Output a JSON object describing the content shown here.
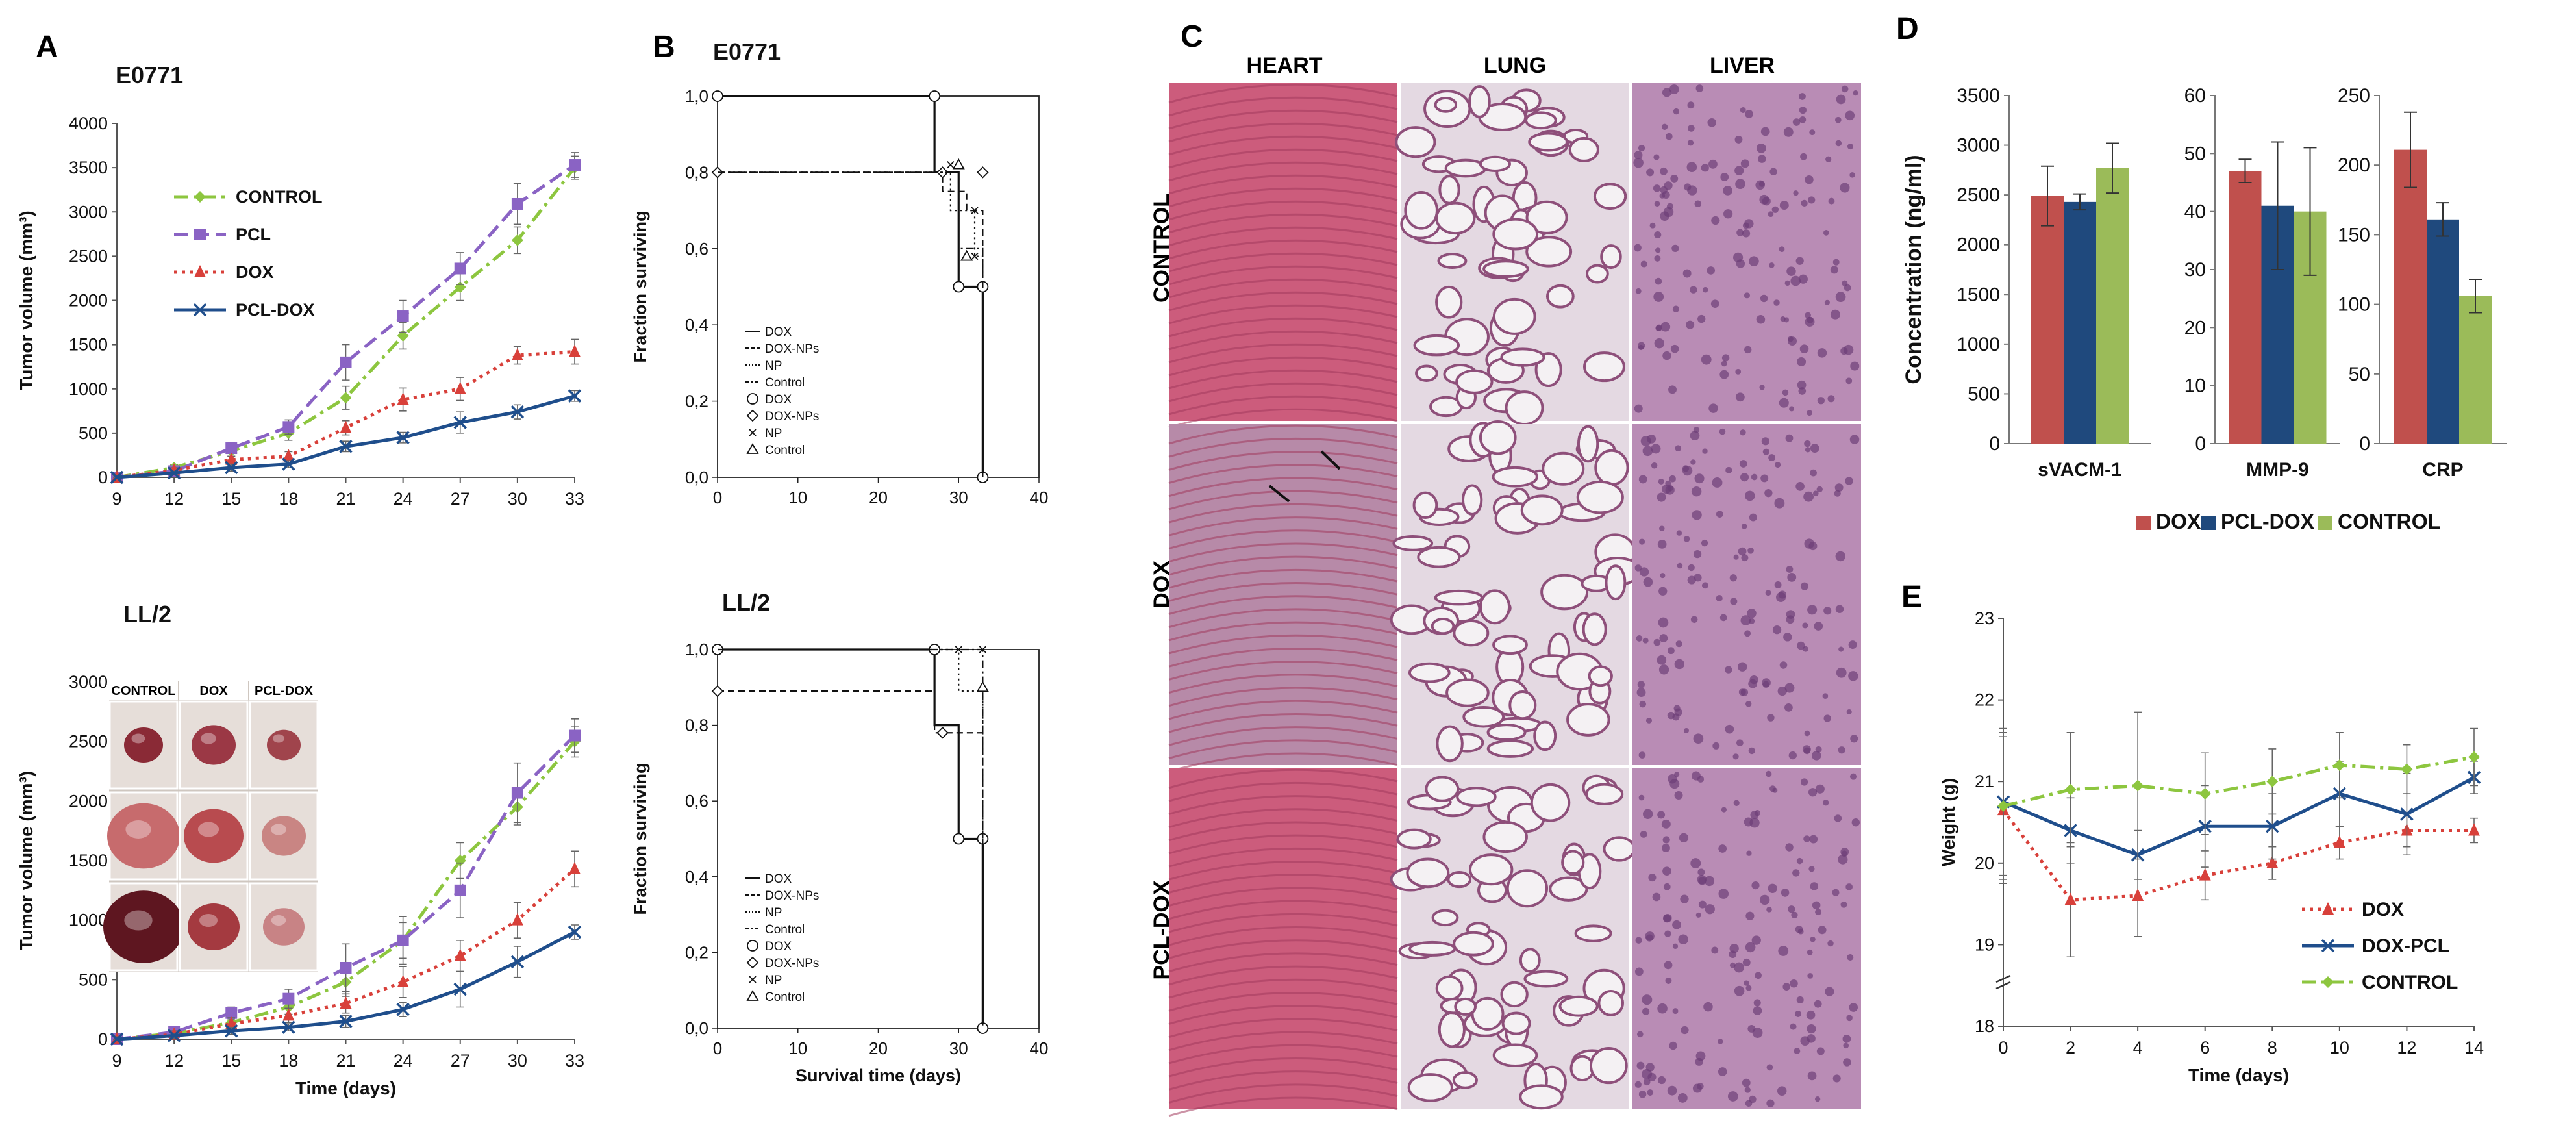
{
  "panel_letters": {
    "a": "A",
    "b": "B",
    "c": "C",
    "d": "D",
    "e": "E"
  },
  "colors": {
    "control": "#8dc63f",
    "pcl": "#8a63c4",
    "dox": "#d8403a",
    "pcl_dox": "#1f4e8c",
    "bar_dox": "#c0504d",
    "bar_pcl_dox": "#1f497d",
    "bar_control": "#9bbb59",
    "tissue_heart": "#cc5c7c",
    "tissue_lung": "#e4d9e2",
    "tissue_liver": "#b98cb5"
  },
  "histology": {
    "columns": [
      "HEART",
      "LUNG",
      "LIVER"
    ],
    "rows": [
      "CONTROL",
      "DOX",
      "PCL-DOX"
    ]
  },
  "photo_inset": {
    "headers": [
      "CONTROL",
      "DOX",
      "PCL-DOX"
    ]
  },
  "chart_data": [
    {
      "id": "A1",
      "type": "line",
      "title": "E0771",
      "xlabel": "",
      "ylabel": "Tumor volume (mm³)",
      "x": [
        9,
        12,
        15,
        18,
        21,
        24,
        27,
        30,
        33
      ],
      "xlim": [
        9,
        33
      ],
      "ylim": [
        0,
        4000
      ],
      "yticks": [
        0,
        500,
        1000,
        1500,
        2000,
        2500,
        3000,
        3500,
        4000
      ],
      "legend": "top-left",
      "series": [
        {
          "name": "CONTROL",
          "color": "#8dc63f",
          "marker": "diamond",
          "dash": "dashdot",
          "values": [
            0,
            110,
            300,
            500,
            900,
            1600,
            2150,
            2680,
            3500
          ],
          "errors": [
            20,
            30,
            60,
            80,
            130,
            150,
            150,
            150,
            130
          ]
        },
        {
          "name": "PCL",
          "color": "#8a63c4",
          "marker": "square",
          "dash": "dash",
          "values": [
            0,
            70,
            330,
            570,
            1300,
            1820,
            2360,
            3090,
            3530
          ],
          "errors": [
            20,
            40,
            60,
            80,
            200,
            180,
            180,
            230,
            140
          ]
        },
        {
          "name": "DOX",
          "color": "#d8403a",
          "marker": "triangle",
          "dash": "dot",
          "values": [
            0,
            80,
            200,
            240,
            560,
            880,
            1000,
            1380,
            1420
          ],
          "errors": [
            20,
            30,
            40,
            50,
            80,
            130,
            130,
            100,
            140
          ]
        },
        {
          "name": "PCL-DOX",
          "color": "#1f4e8c",
          "marker": "x",
          "dash": "solid",
          "values": [
            0,
            50,
            110,
            150,
            350,
            450,
            620,
            740,
            920
          ],
          "errors": [
            20,
            20,
            40,
            40,
            60,
            60,
            120,
            80,
            60
          ]
        }
      ]
    },
    {
      "id": "A2",
      "type": "line",
      "title": "LL/2",
      "xlabel": "Time (days)",
      "ylabel": "Tumor volume (mm³)",
      "x": [
        9,
        12,
        15,
        18,
        21,
        24,
        27,
        30,
        33
      ],
      "xlim": [
        9,
        33
      ],
      "ylim": [
        0,
        3000
      ],
      "yticks": [
        0,
        500,
        1000,
        1500,
        2000,
        2500,
        3000
      ],
      "series": [
        {
          "name": "CONTROL",
          "color": "#8dc63f",
          "marker": "diamond",
          "dash": "dashdot",
          "values": [
            0,
            50,
            140,
            270,
            480,
            830,
            1500,
            1950,
            2500
          ],
          "errors": [
            20,
            30,
            40,
            60,
            120,
            150,
            150,
            150,
            130
          ]
        },
        {
          "name": "PCL",
          "color": "#8a63c4",
          "marker": "square",
          "dash": "dash",
          "values": [
            0,
            60,
            220,
            340,
            600,
            830,
            1250,
            2070,
            2550
          ],
          "errors": [
            20,
            40,
            50,
            80,
            200,
            200,
            230,
            250,
            140
          ]
        },
        {
          "name": "DOX",
          "color": "#d8403a",
          "marker": "triangle",
          "dash": "dot",
          "values": [
            0,
            40,
            130,
            200,
            300,
            480,
            700,
            1000,
            1430
          ],
          "errors": [
            20,
            30,
            50,
            60,
            80,
            130,
            130,
            150,
            150
          ]
        },
        {
          "name": "PCL-DOX",
          "color": "#1f4e8c",
          "marker": "x",
          "dash": "solid",
          "values": [
            0,
            30,
            70,
            100,
            150,
            250,
            420,
            650,
            900
          ],
          "errors": [
            20,
            20,
            30,
            30,
            50,
            60,
            150,
            130,
            60
          ]
        }
      ]
    },
    {
      "id": "B1",
      "type": "step",
      "title": "E0771",
      "xlabel": "",
      "ylabel": "Fraction surviving",
      "xlim": [
        0,
        40
      ],
      "ylim": [
        0,
        1
      ],
      "xticks": [
        0,
        10,
        20,
        30,
        40
      ],
      "yticks": [
        0.0,
        0.2,
        0.4,
        0.6,
        0.8,
        1.0
      ],
      "ytick_labels": [
        "0,0",
        "0,2",
        "0,4",
        "0,6",
        "0,8",
        "1,0"
      ],
      "legend_entries": [
        "DOX",
        "DOX-NPs",
        "NP",
        "Control",
        "DOX",
        "DOX-NPs",
        "NP",
        "Control"
      ],
      "series": [
        {
          "name": "DOX",
          "dash": "solid",
          "steps": [
            [
              0,
              1.0
            ],
            [
              27,
              1.0
            ],
            [
              27,
              0.8
            ],
            [
              30,
              0.8
            ],
            [
              30,
              0.5
            ],
            [
              33,
              0.5
            ],
            [
              33,
              0.0
            ]
          ],
          "censored": [
            [
              0,
              1.0
            ],
            [
              27,
              1.0
            ],
            [
              30,
              0.5
            ],
            [
              33,
              0.5
            ],
            [
              33,
              0.0
            ]
          ]
        },
        {
          "name": "DOX-NPs",
          "dash": "dash",
          "steps": [
            [
              0,
              0.8
            ],
            [
              28,
              0.8
            ],
            [
              28,
              0.75
            ],
            [
              31,
              0.75
            ],
            [
              31,
              0.7
            ],
            [
              33,
              0.7
            ],
            [
              33,
              0.0
            ]
          ],
          "censored": [
            [
              0,
              0.8
            ],
            [
              33,
              0.8
            ],
            [
              28,
              0.8
            ]
          ]
        },
        {
          "name": "NP",
          "dash": "dot",
          "steps": [
            [
              0,
              0.8
            ],
            [
              29,
              0.8
            ],
            [
              29,
              0.7
            ],
            [
              32,
              0.7
            ],
            [
              32,
              0.58
            ],
            [
              33,
              0.58
            ],
            [
              33,
              0.0
            ]
          ],
          "censored": [
            [
              29,
              0.82
            ],
            [
              32,
              0.7
            ],
            [
              32,
              0.58
            ]
          ]
        },
        {
          "name": "Control",
          "dash": "dashdot",
          "steps": [
            [
              0,
              0.8
            ],
            [
              30,
              0.8
            ],
            [
              30,
              0.6
            ],
            [
              33,
              0.6
            ],
            [
              33,
              0.0
            ]
          ],
          "censored": [
            [
              30,
              0.82
            ],
            [
              31,
              0.58
            ]
          ]
        }
      ]
    },
    {
      "id": "B2",
      "type": "step",
      "title": "LL/2",
      "xlabel": "Survival time (days)",
      "ylabel": "Fraction surviving",
      "xlim": [
        0,
        40
      ],
      "ylim": [
        0,
        1
      ],
      "xticks": [
        0,
        10,
        20,
        30,
        40
      ],
      "yticks": [
        0.0,
        0.2,
        0.4,
        0.6,
        0.8,
        1.0
      ],
      "ytick_labels": [
        "0,0",
        "0,2",
        "0,4",
        "0,6",
        "0,8",
        "1,0"
      ],
      "legend_entries": [
        "DOX",
        "DOX-NPs",
        "NP",
        "Control",
        "DOX",
        "DOX-NPs",
        "NP",
        "Control"
      ],
      "series": [
        {
          "name": "DOX",
          "dash": "solid",
          "steps": [
            [
              0,
              1.0
            ],
            [
              27,
              1.0
            ],
            [
              27,
              0.8
            ],
            [
              30,
              0.8
            ],
            [
              30,
              0.5
            ],
            [
              33,
              0.5
            ],
            [
              33,
              0.0
            ]
          ],
          "censored": [
            [
              0,
              1.0
            ],
            [
              27,
              1.0
            ],
            [
              30,
              0.5
            ],
            [
              33,
              0.5
            ],
            [
              33,
              0.0
            ]
          ]
        },
        {
          "name": "DOX-NPs",
          "dash": "dash",
          "steps": [
            [
              0,
              0.89
            ],
            [
              27,
              0.89
            ],
            [
              27,
              0.78
            ],
            [
              33,
              0.78
            ],
            [
              33,
              0.0
            ]
          ],
          "censored": [
            [
              0,
              0.89
            ],
            [
              28,
              0.78
            ]
          ]
        },
        {
          "name": "NP",
          "dash": "dot",
          "steps": [
            [
              0,
              1.0
            ],
            [
              30,
              1.0
            ],
            [
              30,
              0.89
            ],
            [
              33,
              0.89
            ],
            [
              33,
              0.0
            ]
          ],
          "censored": [
            [
              30,
              1.0
            ],
            [
              33,
              1.0
            ]
          ]
        },
        {
          "name": "Control",
          "dash": "dashdot",
          "steps": [
            [
              0,
              1.0
            ],
            [
              33,
              1.0
            ],
            [
              33,
              0.0
            ]
          ],
          "censored": [
            [
              33,
              0.9
            ]
          ]
        }
      ]
    },
    {
      "id": "D1",
      "type": "bar",
      "ylabel": "Concentration (ng/ml)",
      "categories": [
        "sVACM-1"
      ],
      "ylim": [
        0,
        3500
      ],
      "yticks": [
        0,
        500,
        1000,
        1500,
        2000,
        2500,
        3000,
        3500
      ],
      "series": [
        {
          "name": "DOX",
          "color": "#c0504d",
          "values": [
            2490
          ],
          "errors": [
            300
          ]
        },
        {
          "name": "PCL-DOX",
          "color": "#1f497d",
          "values": [
            2430
          ],
          "errors": [
            80
          ]
        },
        {
          "name": "CONTROL",
          "color": "#9bbb59",
          "values": [
            2770
          ],
          "errors": [
            250
          ]
        }
      ]
    },
    {
      "id": "D2",
      "type": "bar",
      "ylabel": "",
      "categories": [
        "MMP-9"
      ],
      "ylim": [
        0,
        60
      ],
      "yticks": [
        0,
        10,
        20,
        30,
        40,
        50,
        60
      ],
      "series": [
        {
          "name": "DOX",
          "color": "#c0504d",
          "values": [
            47
          ],
          "errors": [
            2
          ]
        },
        {
          "name": "PCL-DOX",
          "color": "#1f497d",
          "values": [
            41
          ],
          "errors": [
            11
          ]
        },
        {
          "name": "CONTROL",
          "color": "#9bbb59",
          "values": [
            40
          ],
          "errors": [
            11
          ]
        }
      ]
    },
    {
      "id": "D3",
      "type": "bar",
      "ylabel": "",
      "categories": [
        "CRP"
      ],
      "ylim": [
        0,
        250
      ],
      "yticks": [
        0,
        50,
        100,
        150,
        200,
        250
      ],
      "legend": "bottom",
      "series": [
        {
          "name": "DOX",
          "color": "#c0504d",
          "values": [
            211
          ],
          "errors": [
            27
          ]
        },
        {
          "name": "PCL-DOX",
          "color": "#1f497d",
          "values": [
            161
          ],
          "errors": [
            12
          ]
        },
        {
          "name": "CONTROL",
          "color": "#9bbb59",
          "values": [
            106
          ],
          "errors": [
            12
          ]
        }
      ]
    },
    {
      "id": "E",
      "type": "line",
      "xlabel": "Time (days)",
      "ylabel": "Weight (g)",
      "x": [
        0,
        2,
        4,
        6,
        8,
        10,
        12,
        14
      ],
      "xlim": [
        0,
        14
      ],
      "ylim": [
        18,
        23
      ],
      "xticks": [
        0,
        2,
        4,
        6,
        8,
        10,
        12,
        14
      ],
      "yticks": [
        18,
        19,
        20,
        21,
        22,
        23
      ],
      "legend": "bottom-right",
      "series": [
        {
          "name": "DOX",
          "color": "#d8403a",
          "marker": "triangle",
          "dash": "dot",
          "values": [
            20.65,
            19.55,
            19.6,
            19.85,
            20.0,
            20.25,
            20.4,
            20.4
          ],
          "errors": [
            0.9,
            0.7,
            0.5,
            0.3,
            0.2,
            0.2,
            0.2,
            0.15
          ]
        },
        {
          "name": "DOX-PCL",
          "color": "#1f4e8c",
          "marker": "x",
          "dash": "solid",
          "values": [
            20.75,
            20.4,
            20.1,
            20.45,
            20.45,
            20.85,
            20.6,
            21.05
          ],
          "errors": [
            0.9,
            0.4,
            0.3,
            0.5,
            0.4,
            0.4,
            0.5,
            0.2
          ]
        },
        {
          "name": "CONTROL",
          "color": "#8dc63f",
          "marker": "diamond",
          "dash": "dashdot",
          "values": [
            20.7,
            20.9,
            20.95,
            20.85,
            21.0,
            21.2,
            21.15,
            21.3
          ],
          "errors": [
            0.9,
            0.7,
            0.9,
            0.5,
            0.4,
            0.4,
            0.3,
            0.35
          ]
        }
      ]
    }
  ]
}
